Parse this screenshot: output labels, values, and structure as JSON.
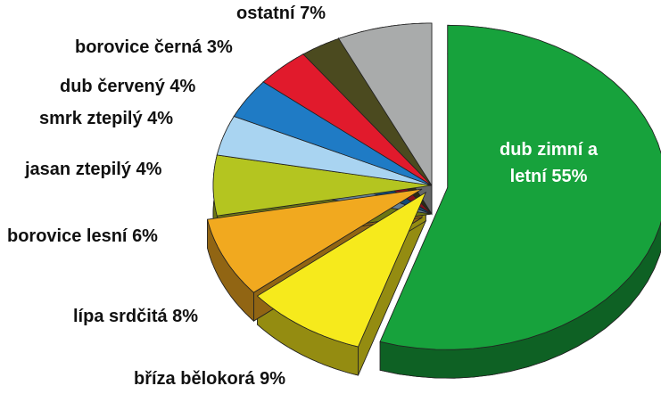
{
  "chart_data": {
    "type": "pie",
    "categories": [
      "dub zimní a letní",
      "bříza bělokorá",
      "lípa srdčitá",
      "borovice lesní",
      "jasan ztepilý",
      "smrk ztepilý",
      "dub červený",
      "borovice černá",
      "ostatní"
    ],
    "values": [
      55,
      9,
      8,
      6,
      4,
      4,
      4,
      3,
      7
    ],
    "value_labels": [
      "55%",
      "9%",
      "8%",
      "6%",
      "4%",
      "4%",
      "4%",
      "3%",
      "7%"
    ],
    "colors": [
      "#17a23c",
      "#f6ea1c",
      "#f1a91f",
      "#b4c520",
      "#a9d4f1",
      "#1f7bc5",
      "#e11a2c",
      "#4b4a1f",
      "#a9abab"
    ]
  }
}
